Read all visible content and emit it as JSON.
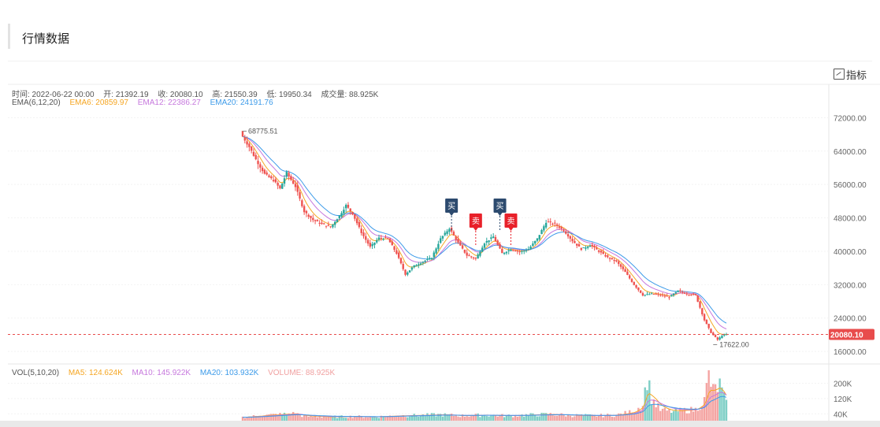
{
  "page": {
    "title": "行情数据",
    "indicator_button": "指标"
  },
  "info": {
    "time": "时间: 2022-06-22 00:00",
    "open": "开: 21392.19",
    "close": "收: 20080.10",
    "high": "高: 21550.39",
    "low": "低: 19950.34",
    "volume": "成交量: 88.925K"
  },
  "ema_legend": {
    "label": "EMA(6,12,20)",
    "ema6": "EMA6: 20859.97",
    "ema12": "EMA12: 22386.27",
    "ema20": "EMA20: 24191.76"
  },
  "vol_legend": {
    "label": "VOL(5,10,20)",
    "ma5": "MA5: 124.624K",
    "ma10": "MA10: 145.922K",
    "ma20": "MA20: 103.932K",
    "volume": "VOLUME: 88.925K"
  },
  "colors": {
    "up": "#26a69a",
    "down": "#ef5350",
    "ema6": "#f5a623",
    "ema12": "#c678dd",
    "ema20": "#3d9be9",
    "buy_marker": "#2c4a6e",
    "sell_marker": "#e8212a",
    "price_tag": "#e84c4c"
  },
  "chart_data": {
    "type": "candlestick",
    "price_axis": {
      "ticks": [
        "72000.00",
        "64000.00",
        "56000.00",
        "48000.00",
        "40000.00",
        "32000.00",
        "24000.00",
        "16000.00"
      ],
      "range": [
        13000,
        80000
      ]
    },
    "volume_axis": {
      "ticks": [
        "200K",
        "120K",
        "40K"
      ],
      "range": [
        0,
        260000
      ]
    },
    "last_price": 20080.1,
    "last_price_label": "20080.10",
    "max_label": "68775.51",
    "min_label": "17622.00",
    "max_value": 68775.51,
    "min_value": 17622.0,
    "close_path": [
      [
        0,
        67500
      ],
      [
        3,
        65000
      ],
      [
        6,
        62000
      ],
      [
        10,
        58500
      ],
      [
        14,
        57000
      ],
      [
        17,
        55000
      ],
      [
        20,
        58800
      ],
      [
        24,
        55500
      ],
      [
        28,
        49500
      ],
      [
        32,
        47500
      ],
      [
        36,
        46500
      ],
      [
        40,
        45800
      ],
      [
        44,
        48500
      ],
      [
        47,
        51000
      ],
      [
        50,
        49000
      ],
      [
        54,
        44500
      ],
      [
        58,
        41000
      ],
      [
        62,
        43200
      ],
      [
        66,
        43000
      ],
      [
        70,
        39500
      ],
      [
        74,
        34500
      ],
      [
        78,
        36500
      ],
      [
        82,
        37500
      ],
      [
        86,
        38500
      ],
      [
        90,
        43000
      ],
      [
        94,
        45500
      ],
      [
        98,
        42000
      ],
      [
        102,
        39000
      ],
      [
        106,
        38200
      ],
      [
        110,
        42000
      ],
      [
        114,
        43500
      ],
      [
        118,
        39500
      ],
      [
        122,
        40500
      ],
      [
        126,
        39800
      ],
      [
        130,
        40500
      ],
      [
        134,
        43000
      ],
      [
        138,
        47000
      ],
      [
        142,
        46500
      ],
      [
        146,
        45000
      ],
      [
        150,
        42500
      ],
      [
        154,
        40500
      ],
      [
        158,
        41500
      ],
      [
        162,
        40000
      ],
      [
        166,
        38500
      ],
      [
        170,
        37500
      ],
      [
        174,
        35000
      ],
      [
        178,
        32000
      ],
      [
        182,
        29500
      ],
      [
        186,
        29800
      ],
      [
        190,
        29500
      ],
      [
        194,
        29000
      ],
      [
        198,
        30500
      ],
      [
        202,
        29800
      ],
      [
        206,
        29500
      ],
      [
        210,
        23500
      ],
      [
        213,
        20500
      ],
      [
        216,
        18800
      ],
      [
        218,
        19800
      ],
      [
        220,
        20080.1
      ]
    ],
    "volume_path": [
      [
        0,
        22000
      ],
      [
        6,
        28000
      ],
      [
        10,
        32000
      ],
      [
        18,
        38000
      ],
      [
        24,
        42000
      ],
      [
        28,
        28000
      ],
      [
        40,
        24000
      ],
      [
        50,
        26000
      ],
      [
        60,
        24000
      ],
      [
        70,
        30000
      ],
      [
        80,
        32000
      ],
      [
        90,
        36000
      ],
      [
        100,
        30000
      ],
      [
        110,
        34000
      ],
      [
        120,
        30000
      ],
      [
        130,
        34000
      ],
      [
        140,
        38000
      ],
      [
        150,
        32000
      ],
      [
        160,
        30000
      ],
      [
        170,
        34000
      ],
      [
        178,
        52000
      ],
      [
        182,
        90000
      ],
      [
        184,
        230000
      ],
      [
        186,
        120000
      ],
      [
        190,
        60000
      ],
      [
        196,
        52000
      ],
      [
        200,
        58000
      ],
      [
        206,
        62000
      ],
      [
        210,
        110000
      ],
      [
        212,
        240000
      ],
      [
        214,
        160000
      ],
      [
        217,
        190000
      ],
      [
        220,
        88925
      ]
    ],
    "series": [
      {
        "name": "EMA6",
        "lag": 2
      },
      {
        "name": "EMA12",
        "lag": 4
      },
      {
        "name": "EMA20",
        "lag": 6
      }
    ],
    "volume_series": [
      {
        "name": "MA5",
        "lag": 2
      },
      {
        "name": "MA10",
        "lag": 4
      },
      {
        "name": "MA20",
        "lag": 7
      }
    ],
    "markers": [
      {
        "type": "buy",
        "label": "买",
        "index": 95,
        "price": 47000
      },
      {
        "type": "sell",
        "label": "卖",
        "index": 106,
        "price": 43500
      },
      {
        "type": "buy",
        "label": "买",
        "index": 117,
        "price": 47000
      },
      {
        "type": "sell",
        "label": "卖",
        "index": 122,
        "price": 43500
      }
    ]
  }
}
